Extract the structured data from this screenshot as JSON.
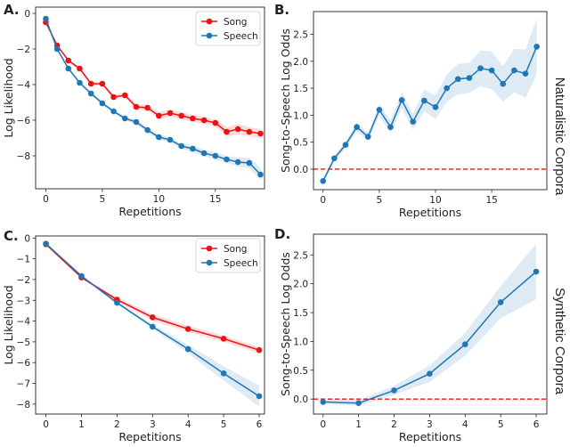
{
  "colors": {
    "song": "#ee1111",
    "speech": "#1f77b4",
    "zero_line": "#ee1111"
  },
  "row_labels": [
    "Naturalistic Corpora",
    "Synthetic Corpora"
  ],
  "chart_data": [
    {
      "panel": "A.",
      "type": "line",
      "xlabel": "Repetitions",
      "ylabel": "Log Likelihood",
      "xlim": [
        -0.9,
        19.35
      ],
      "ylim": [
        -9.85,
        0.35
      ],
      "xticks": [
        0,
        5,
        10,
        15
      ],
      "yticks": [
        0,
        -2,
        -4,
        -6,
        -8
      ],
      "legend": "top-right",
      "x": [
        0,
        1,
        2,
        3,
        4,
        5,
        6,
        7,
        8,
        9,
        10,
        11,
        12,
        13,
        14,
        15,
        16,
        17,
        18,
        19
      ],
      "series": [
        {
          "name": "Song",
          "color": "#ee1111",
          "values": [
            -0.5,
            -1.8,
            -2.65,
            -3.1,
            -3.95,
            -3.95,
            -4.7,
            -4.6,
            -5.25,
            -5.3,
            -5.75,
            -5.6,
            -5.75,
            -5.9,
            -6.0,
            -6.15,
            -6.65,
            -6.5,
            -6.65,
            -6.75
          ],
          "ci": [
            0.05,
            0.05,
            0.08,
            0.08,
            0.1,
            0.1,
            0.12,
            0.12,
            0.15,
            0.15,
            0.2,
            0.2,
            0.2,
            0.2,
            0.2,
            0.2,
            0.25,
            0.3,
            0.25,
            0.25
          ]
        },
        {
          "name": "Speech",
          "color": "#1f77b4",
          "values": [
            -0.3,
            -2.0,
            -3.1,
            -3.9,
            -4.5,
            -5.05,
            -5.5,
            -5.9,
            -6.1,
            -6.55,
            -6.95,
            -7.1,
            -7.45,
            -7.6,
            -7.85,
            -8.0,
            -8.2,
            -8.35,
            -8.4,
            -9.05
          ],
          "ci": [
            0.05,
            0.05,
            0.08,
            0.08,
            0.1,
            0.1,
            0.12,
            0.12,
            0.12,
            0.15,
            0.15,
            0.15,
            0.15,
            0.18,
            0.18,
            0.2,
            0.2,
            0.25,
            0.3,
            0.35
          ]
        }
      ]
    },
    {
      "panel": "B.",
      "type": "line",
      "xlabel": "Repetitions",
      "ylabel": "Song-to-Speech Log Odds",
      "xlim": [
        -0.85,
        19.9
      ],
      "ylim": [
        -0.38,
        2.92
      ],
      "xticks": [
        0,
        5,
        10,
        15
      ],
      "yticks": [
        0.0,
        0.5,
        1.0,
        1.5,
        2.0,
        2.5
      ],
      "reference_line": 0,
      "x": [
        0,
        1,
        2,
        3,
        4,
        5,
        6,
        7,
        8,
        9,
        10,
        11,
        12,
        13,
        14,
        15,
        16,
        17,
        18,
        19
      ],
      "series": [
        {
          "color": "#1f77b4",
          "values": [
            -0.22,
            0.2,
            0.45,
            0.78,
            0.6,
            1.1,
            0.78,
            1.28,
            0.88,
            1.27,
            1.15,
            1.5,
            1.67,
            1.69,
            1.87,
            1.83,
            1.58,
            1.83,
            1.77,
            2.27
          ],
          "ci": [
            0.05,
            0.05,
            0.06,
            0.08,
            0.08,
            0.1,
            0.12,
            0.15,
            0.15,
            0.2,
            0.22,
            0.25,
            0.28,
            0.28,
            0.33,
            0.35,
            0.33,
            0.4,
            0.45,
            0.52
          ]
        }
      ]
    },
    {
      "panel": "C.",
      "type": "line",
      "xlabel": "Repetitions",
      "ylabel": "Log Likelihood",
      "xlim": [
        -0.29,
        6.15
      ],
      "ylim": [
        -8.48,
        0.1
      ],
      "xticks": [
        0,
        1,
        2,
        3,
        4,
        5,
        6
      ],
      "yticks": [
        0,
        -1,
        -2,
        -3,
        -4,
        -5,
        -6,
        -7,
        -8
      ],
      "legend": "top-right",
      "x": [
        0,
        1,
        2,
        3,
        4,
        5,
        6
      ],
      "series": [
        {
          "name": "Song",
          "color": "#ee1111",
          "values": [
            -0.3,
            -1.9,
            -2.97,
            -3.82,
            -4.38,
            -4.85,
            -5.4
          ],
          "ci": [
            0.03,
            0.05,
            0.1,
            0.15,
            0.15,
            0.15,
            0.15
          ]
        },
        {
          "name": "Speech",
          "color": "#1f77b4",
          "values": [
            -0.27,
            -1.83,
            -3.12,
            -4.27,
            -5.35,
            -6.52,
            -7.62
          ],
          "ci": [
            0.03,
            0.05,
            0.08,
            0.1,
            0.2,
            0.35,
            0.5
          ]
        }
      ]
    },
    {
      "panel": "D.",
      "type": "line",
      "xlabel": "Repetitions",
      "ylabel": "Song-to-Speech Log Odds",
      "xlim": [
        -0.27,
        6.3
      ],
      "ylim": [
        -0.26,
        2.86
      ],
      "xticks": [
        0,
        1,
        2,
        3,
        4,
        5,
        6
      ],
      "yticks": [
        0.0,
        0.5,
        1.0,
        1.5,
        2.0,
        2.5
      ],
      "reference_line": 0,
      "x": [
        0,
        1,
        2,
        3,
        4,
        5,
        6
      ],
      "series": [
        {
          "color": "#1f77b4",
          "values": [
            -0.05,
            -0.07,
            0.15,
            0.44,
            0.95,
            1.68,
            2.21
          ],
          "ci": [
            0.03,
            0.05,
            0.08,
            0.14,
            0.2,
            0.28,
            0.48
          ]
        }
      ]
    }
  ]
}
